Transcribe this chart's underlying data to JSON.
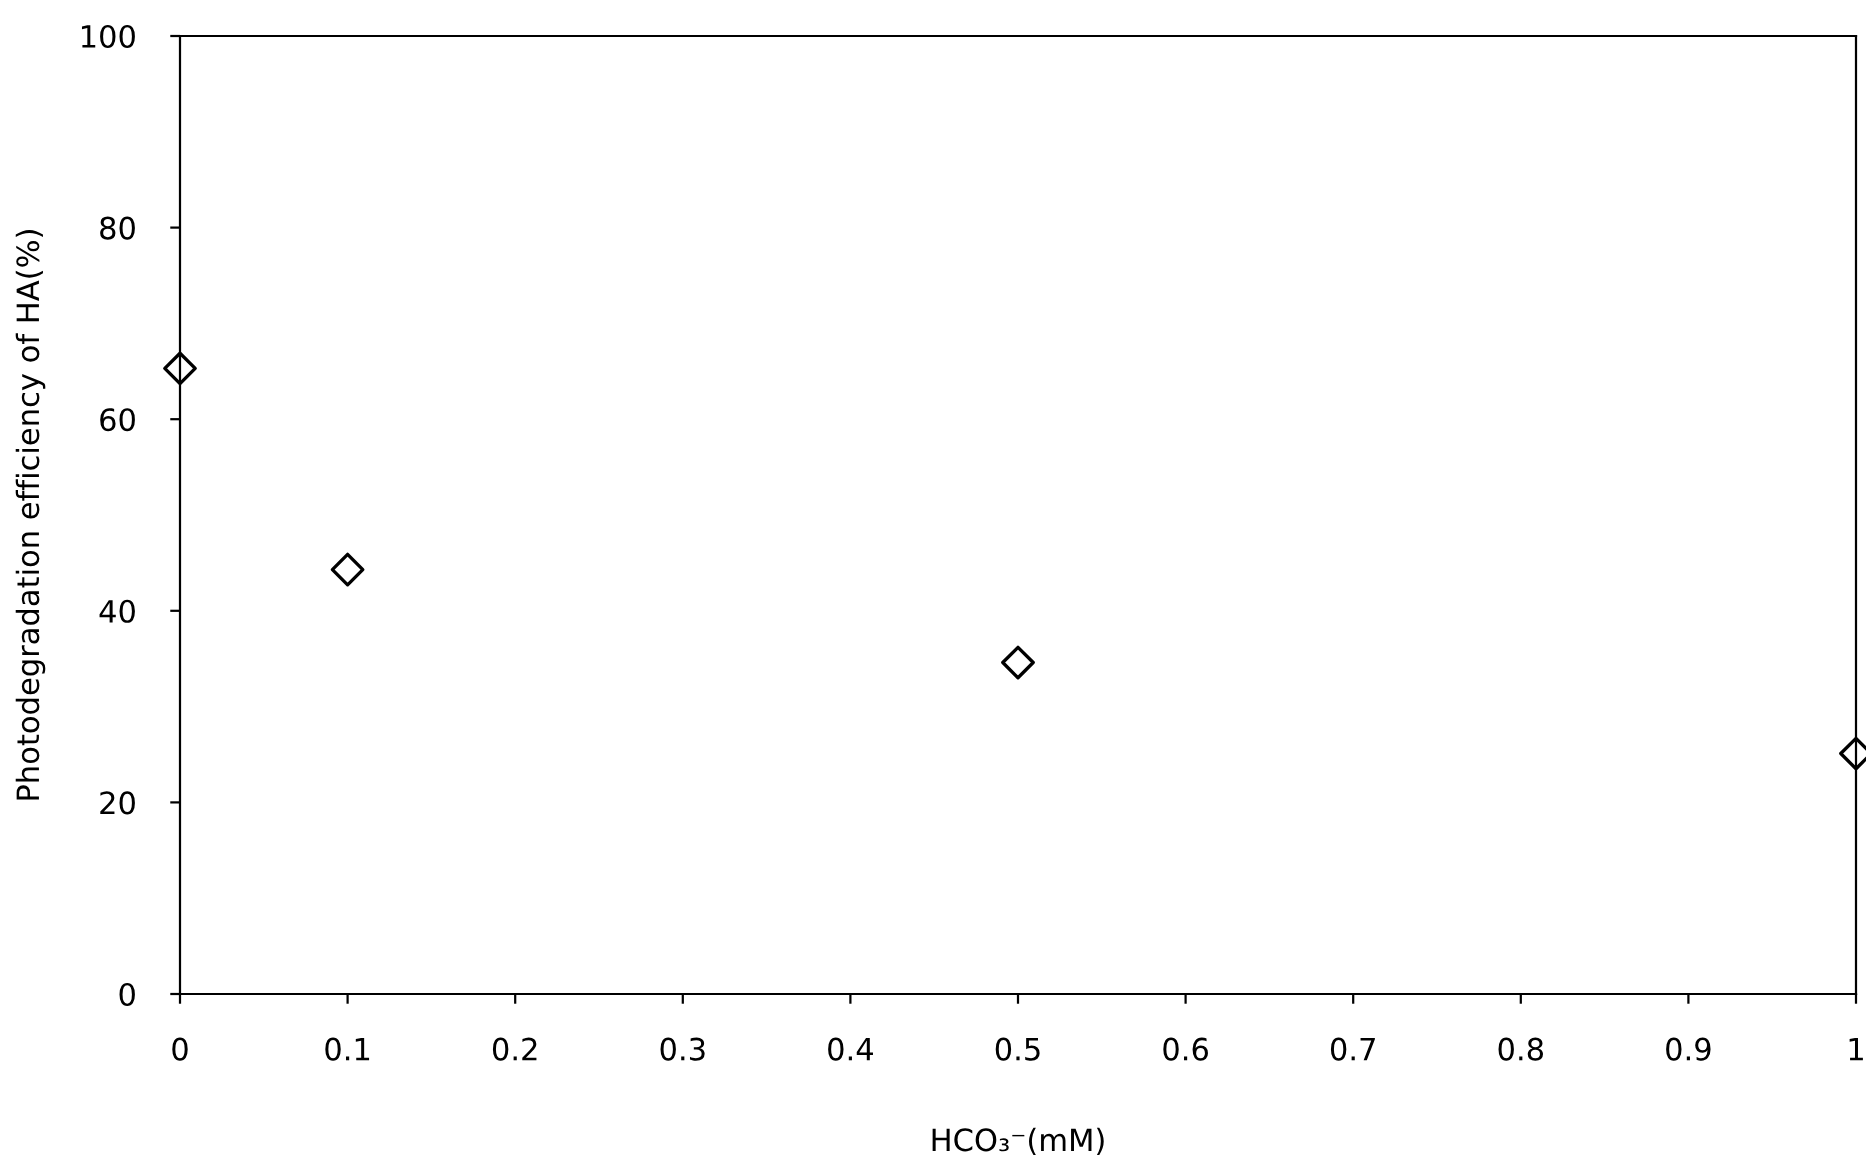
{
  "chart_data": {
    "type": "scatter",
    "xlabel": "HCO₃⁻(mM)",
    "ylabel": "Photodegradation efficiency of HA(%)",
    "x": [
      0,
      0.1,
      0.5,
      1
    ],
    "series": [
      {
        "color": "#000000",
        "values": [
          65.3,
          44.3,
          34.6,
          25.1
        ]
      }
    ],
    "marker": "diamond",
    "xlim": [
      0,
      1
    ],
    "ylim": [
      0,
      100
    ],
    "xticks": [
      0,
      0.1,
      0.2,
      0.3,
      0.4,
      0.5,
      0.6,
      0.7,
      0.8,
      0.9,
      1
    ],
    "yticks": [
      0,
      20,
      40,
      60,
      80,
      100
    ],
    "grid": false,
    "legend": false
  }
}
